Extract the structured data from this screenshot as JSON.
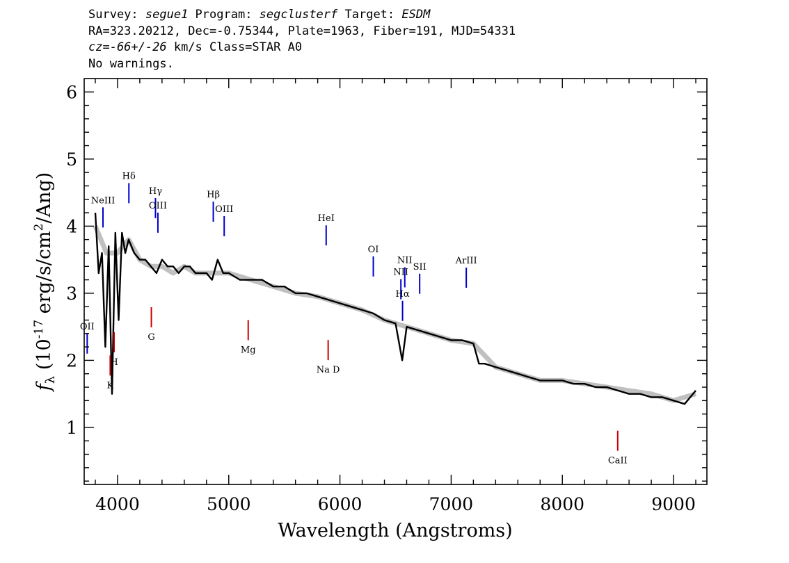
{
  "header": {
    "line1": {
      "k1": "Survey: ",
      "v1": "segue1",
      "k2": " Program: ",
      "v2": "segclusterf",
      "k3": " Target: ",
      "v3": "ESDM"
    },
    "line2": "RA=323.20212, Dec=-0.75344, Plate=1963, Fiber=191, MJD=54331",
    "line3": {
      "v1": "cz=-66+/-26",
      "k2": " km/s Class=STAR A0"
    },
    "line4": "No warnings."
  },
  "chart_data": {
    "type": "line",
    "xlabel": "Wavelength (Angstroms)",
    "ylabel": "f_λ (10^-17 erg/s/cm^2/Ang)",
    "xlim": [
      3700,
      9300
    ],
    "ylim": [
      0.15,
      6.2
    ],
    "xticks": [
      4000,
      5000,
      6000,
      7000,
      8000,
      9000
    ],
    "yticks": [
      1,
      2,
      3,
      4,
      5,
      6
    ],
    "series": [
      {
        "role": "spectrum",
        "color": "#000000",
        "x": [
          3800,
          3830,
          3860,
          3890,
          3920,
          3950,
          3980,
          4010,
          4040,
          4070,
          4100,
          4150,
          4200,
          4250,
          4300,
          4350,
          4400,
          4450,
          4500,
          4550,
          4600,
          4650,
          4700,
          4750,
          4800,
          4850,
          4900,
          4950,
          5000,
          5100,
          5200,
          5300,
          5400,
          5500,
          5600,
          5700,
          5800,
          5900,
          6000,
          6100,
          6200,
          6300,
          6400,
          6500,
          6560,
          6600,
          6700,
          6800,
          6900,
          7000,
          7100,
          7200,
          7250,
          7300,
          7400,
          7500,
          7600,
          7700,
          7800,
          7900,
          8000,
          8100,
          8200,
          8300,
          8400,
          8500,
          8600,
          8700,
          8800,
          8900,
          9000,
          9100,
          9200
        ],
        "y": [
          4.2,
          3.3,
          3.6,
          2.2,
          3.7,
          1.5,
          3.9,
          2.6,
          3.9,
          3.6,
          3.8,
          3.6,
          3.5,
          3.5,
          3.4,
          3.3,
          3.5,
          3.4,
          3.4,
          3.3,
          3.4,
          3.4,
          3.3,
          3.3,
          3.3,
          3.2,
          3.5,
          3.3,
          3.3,
          3.2,
          3.2,
          3.2,
          3.1,
          3.1,
          3.0,
          3.0,
          2.95,
          2.9,
          2.85,
          2.8,
          2.75,
          2.7,
          2.6,
          2.55,
          2.0,
          2.5,
          2.45,
          2.4,
          2.35,
          2.3,
          2.3,
          2.25,
          1.95,
          1.95,
          1.9,
          1.85,
          1.8,
          1.75,
          1.7,
          1.7,
          1.7,
          1.65,
          1.65,
          1.6,
          1.6,
          1.55,
          1.5,
          1.5,
          1.45,
          1.45,
          1.4,
          1.35,
          1.55
        ]
      },
      {
        "role": "noise",
        "color": "#c0c0c0",
        "x": [
          3800,
          3900,
          4000,
          4100,
          4200,
          4300,
          4400,
          4500,
          4600,
          4700,
          4800,
          4900,
          5000,
          5200,
          5400,
          5600,
          5800,
          6000,
          6200,
          6400,
          6600,
          6800,
          7000,
          7200,
          7400,
          7600,
          7800,
          8000,
          8200,
          8400,
          8600,
          8800,
          9000,
          9200
        ],
        "y": [
          4.0,
          3.6,
          3.6,
          3.8,
          3.5,
          3.4,
          3.4,
          3.3,
          3.4,
          3.3,
          3.3,
          3.3,
          3.3,
          3.2,
          3.1,
          3.0,
          2.95,
          2.85,
          2.75,
          2.6,
          2.5,
          2.4,
          2.3,
          2.25,
          1.9,
          1.8,
          1.7,
          1.7,
          1.65,
          1.6,
          1.55,
          1.5,
          1.4,
          1.5
        ]
      }
    ],
    "emission_lines": [
      {
        "name": "OII",
        "x": 3727
      },
      {
        "name": "NeIII",
        "x": 3869
      },
      {
        "name": "Hδ",
        "x": 4102
      },
      {
        "name": "Hγ",
        "x": 4341
      },
      {
        "name": "OIII",
        "x": 4363
      },
      {
        "name": "Hβ",
        "x": 4861
      },
      {
        "name": "OIII",
        "x": 4959
      },
      {
        "name": "HeI",
        "x": 5876
      },
      {
        "name": "OI",
        "x": 6300
      },
      {
        "name": "NII",
        "x": 6548
      },
      {
        "name": "Hα",
        "x": 6563
      },
      {
        "name": "NII",
        "x": 6583
      },
      {
        "name": "SII",
        "x": 6717
      },
      {
        "name": "ArIII",
        "x": 7136
      }
    ],
    "absorption_lines": [
      {
        "name": "K",
        "x": 3934
      },
      {
        "name": "H",
        "x": 3969
      },
      {
        "name": "G",
        "x": 4304
      },
      {
        "name": "Mg",
        "x": 5175
      },
      {
        "name": "Na D",
        "x": 5894
      },
      {
        "name": "CaII",
        "x": 8498
      }
    ],
    "emission_color": "#0000cc",
    "absorption_color": "#cc0000"
  }
}
